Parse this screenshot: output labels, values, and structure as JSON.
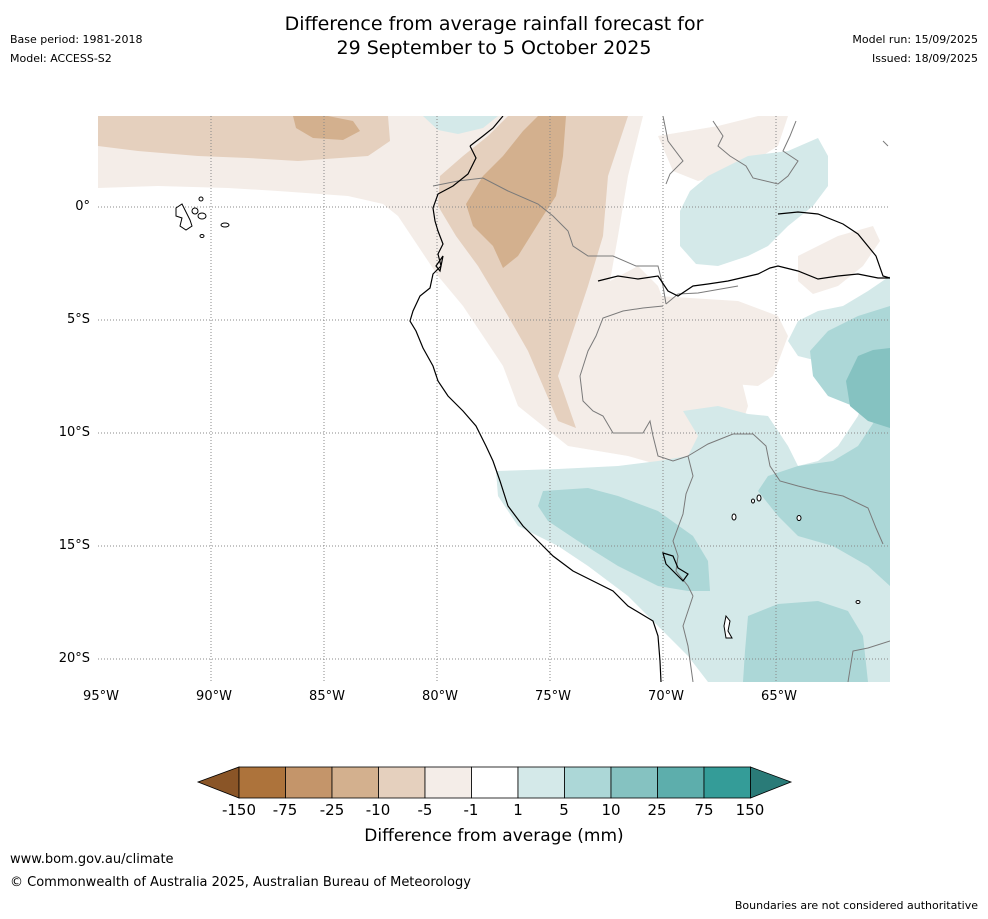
{
  "header": {
    "title_line1": "Difference from average rainfall forecast for",
    "title_line2": "29 September to 5 October 2025",
    "base_period": "Base period: 1981-2018",
    "model": "Model: ACCESS-S2",
    "model_run": "Model run: 15/09/2025",
    "issued": "Issued: 18/09/2025"
  },
  "map": {
    "lat_labels": [
      "0°",
      "5°S",
      "10°S",
      "15°S",
      "20°S"
    ],
    "lon_labels": [
      "95°W",
      "90°W",
      "85°W",
      "80°W",
      "75°W",
      "70°W",
      "65°W"
    ],
    "region": "Peru, Ecuador, Bolivia and western Brazil"
  },
  "legend": {
    "title": "Difference from average (mm)",
    "ticks": [
      "-150",
      "-75",
      "-25",
      "-10",
      "-5",
      "-1",
      "1",
      "5",
      "10",
      "25",
      "75",
      "150"
    ],
    "colors": [
      "#8a5527",
      "#ad733b",
      "#c4956a",
      "#d3b08e",
      "#e5d0be",
      "#f4ede8",
      "#ffffff",
      "#d4e9e9",
      "#acd7d7",
      "#85c2c1",
      "#5daeac",
      "#349c98",
      "#2a7b78"
    ]
  },
  "footer": {
    "website": "www.bom.gov.au/climate",
    "copyright": "© Commonwealth of Australia 2025, Australian Bureau of Meteorology",
    "disclaimer": "Boundaries are not considered authoritative"
  }
}
